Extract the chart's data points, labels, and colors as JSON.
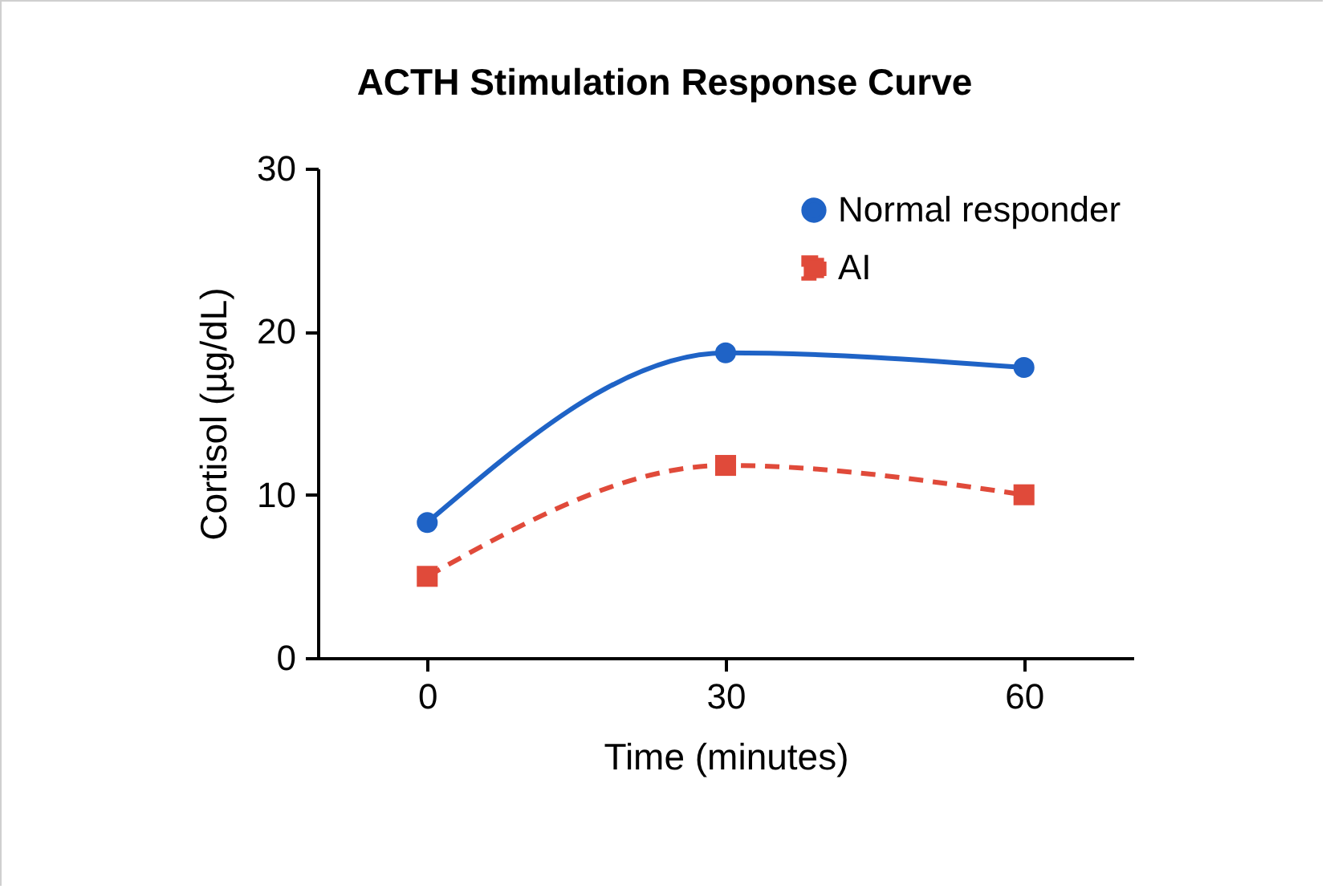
{
  "chart_data": {
    "type": "line",
    "title": "ACTH Stimulation Response Curve",
    "xlabel": "Time (minutes)",
    "ylabel": "Cortisol (µg/dL)",
    "x": [
      0,
      30,
      60
    ],
    "series": [
      {
        "name": "Normal responder",
        "color": "#1f63c6",
        "values": [
          8.3,
          18.7,
          17.8
        ],
        "marker": "circle",
        "line_style": "solid"
      },
      {
        "name": "AI",
        "color": "#e04a3a",
        "values": [
          5.0,
          11.8,
          10.0
        ],
        "marker": "square",
        "line_style": "dashed"
      }
    ],
    "xlim": [
      -11,
      71
    ],
    "xticks": [
      0,
      30,
      60
    ],
    "ylim": [
      0,
      30
    ],
    "yticks": [
      0,
      10,
      20,
      30
    ],
    "grid": false,
    "legend": "top right"
  }
}
